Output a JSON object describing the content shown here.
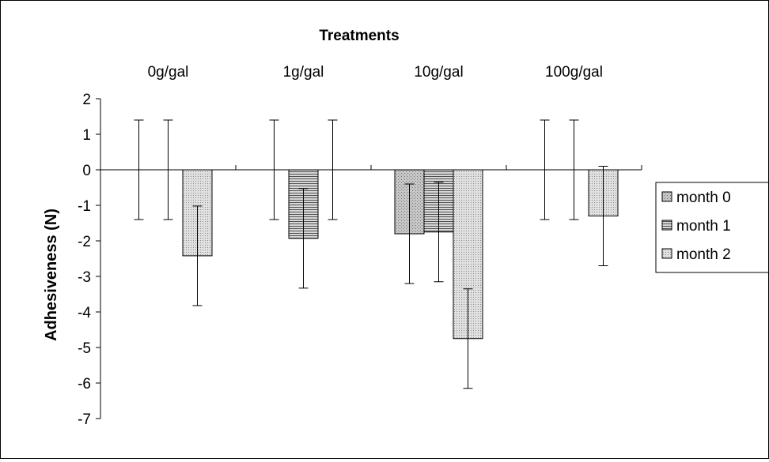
{
  "chart_data": {
    "type": "bar",
    "title": "Treatments",
    "xlabel": "",
    "ylabel": "Adhesiveness (N)",
    "categories": [
      "0g/gal",
      "1g/gal",
      "10g/gal",
      "100g/gal"
    ],
    "ylim": [
      -7,
      2
    ],
    "yticks": [
      2,
      1,
      0,
      -1,
      -2,
      -3,
      -4,
      -5,
      -6,
      -7
    ],
    "grid": false,
    "legend_position": "right",
    "series": [
      {
        "name": "month 0",
        "pattern": "dots",
        "color": "#c0c0c0",
        "values": [
          0,
          0,
          -1.8,
          0
        ],
        "err_low": [
          -1.4,
          -1.4,
          -3.2,
          -1.4
        ],
        "err_high": [
          1.4,
          1.4,
          -0.4,
          1.4
        ]
      },
      {
        "name": "month 1",
        "pattern": "hlines",
        "color": "#808080",
        "values": [
          0,
          -1.93,
          -1.75,
          0
        ],
        "err_low": [
          -1.4,
          -3.33,
          -3.15,
          -1.4
        ],
        "err_high": [
          1.4,
          -0.53,
          -0.35,
          1.4
        ]
      },
      {
        "name": "month 2",
        "pattern": "fine-dots",
        "color": "#d0d0d0",
        "values": [
          -2.42,
          0,
          -4.75,
          -1.3
        ],
        "err_low": [
          -3.82,
          -1.4,
          -6.15,
          -2.7
        ],
        "err_high": [
          -1.02,
          1.4,
          -3.35,
          0.1
        ]
      }
    ]
  }
}
